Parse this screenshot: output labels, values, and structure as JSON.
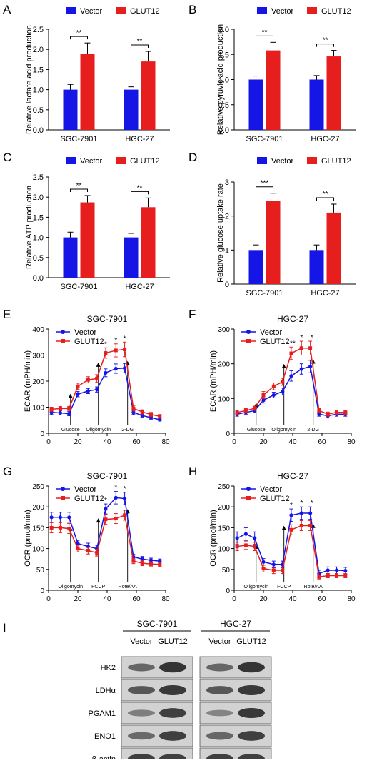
{
  "colors": {
    "vector": "#1515e6",
    "glut12": "#e61e1e",
    "blot_bg": "#d2d2d2",
    "band": "#2d2d2d"
  },
  "legend": {
    "vector": "Vector",
    "glut12": "GLUT12"
  },
  "chart_data": [
    {
      "panel": "A",
      "type": "bar",
      "categories": [
        "SGC-7901",
        "HGC-27"
      ],
      "series": [
        {
          "name": "Vector",
          "values": [
            1.0,
            1.0
          ],
          "errors": [
            0.13,
            0.07
          ]
        },
        {
          "name": "GLUT12",
          "values": [
            1.88,
            1.7
          ],
          "errors": [
            0.28,
            0.25
          ]
        }
      ],
      "significance": [
        "**",
        "**"
      ],
      "ylabel": "Relative lactate acid production",
      "ylim": [
        0,
        2.5
      ],
      "yticks": [
        "0.0",
        "0.5",
        "1.0",
        "1.5",
        "2.0",
        "2.5"
      ],
      "grid": false,
      "legend": "top"
    },
    {
      "panel": "B",
      "type": "bar",
      "categories": [
        "SGC-7901",
        "HGC-27"
      ],
      "series": [
        {
          "name": "Vector",
          "values": [
            1.0,
            1.0
          ],
          "errors": [
            0.07,
            0.08
          ]
        },
        {
          "name": "GLUT12",
          "values": [
            1.58,
            1.46
          ],
          "errors": [
            0.16,
            0.12
          ]
        }
      ],
      "significance": [
        "**",
        "**"
      ],
      "ylabel": "Relative pyruvic acid production",
      "ylim": [
        0,
        2.0
      ],
      "yticks": [
        "0.0",
        "0.5",
        "1.0",
        "1.5",
        "2.0"
      ],
      "grid": false,
      "legend": "top"
    },
    {
      "panel": "C",
      "type": "bar",
      "categories": [
        "SGC-7901",
        "HGC-27"
      ],
      "series": [
        {
          "name": "Vector",
          "values": [
            1.0,
            1.0
          ],
          "errors": [
            0.13,
            0.1
          ]
        },
        {
          "name": "GLUT12",
          "values": [
            1.87,
            1.75
          ],
          "errors": [
            0.17,
            0.23
          ]
        }
      ],
      "significance": [
        "**",
        "**"
      ],
      "ylabel": "Relative ATP production",
      "ylim": [
        0,
        2.5
      ],
      "yticks": [
        "0.0",
        "0.5",
        "1.0",
        "1.5",
        "2.0",
        "2.5"
      ],
      "grid": false,
      "legend": "top"
    },
    {
      "panel": "D",
      "type": "bar",
      "categories": [
        "SGC-7901",
        "HGC-27"
      ],
      "series": [
        {
          "name": "Vector",
          "values": [
            1.0,
            1.0
          ],
          "errors": [
            0.15,
            0.15
          ]
        },
        {
          "name": "GLUT12",
          "values": [
            2.45,
            2.1
          ],
          "errors": [
            0.22,
            0.25
          ]
        }
      ],
      "significance": [
        "***",
        "**"
      ],
      "ylabel": "Relative glucose uptake rate",
      "ylim": [
        0,
        3
      ],
      "yticks": [
        "0",
        "1",
        "2",
        "3"
      ],
      "grid": false,
      "legend": "top"
    },
    {
      "panel": "E",
      "type": "line",
      "title": "SGC-7901",
      "ylabel": "ECAR (mPH/min)",
      "xlim": [
        0,
        80
      ],
      "ylim": [
        0,
        400
      ],
      "xticks": [
        "0",
        "20",
        "40",
        "60",
        "80"
      ],
      "yticks": [
        "0",
        "100",
        "200",
        "300",
        "400"
      ],
      "x": [
        2,
        8,
        14,
        20,
        27,
        33,
        39,
        46,
        52,
        58,
        64,
        70,
        76
      ],
      "series": [
        {
          "name": "Vector",
          "values": [
            80,
            78,
            75,
            150,
            162,
            168,
            232,
            248,
            250,
            80,
            68,
            60,
            52
          ],
          "errors": [
            8,
            8,
            8,
            10,
            10,
            10,
            15,
            18,
            18,
            8,
            6,
            6,
            5
          ]
        },
        {
          "name": "GLUT12",
          "values": [
            92,
            95,
            95,
            180,
            205,
            210,
            308,
            318,
            322,
            95,
            82,
            72,
            65
          ],
          "errors": [
            8,
            8,
            8,
            12,
            12,
            15,
            20,
            25,
            28,
            10,
            8,
            8,
            7
          ]
        }
      ],
      "significance": [
        {
          "x": 39,
          "text": "*"
        },
        {
          "x": 46,
          "text": "*"
        },
        {
          "x": 52,
          "text": "*"
        }
      ],
      "injections": [
        {
          "x": 15,
          "label": "Glucose"
        },
        {
          "x": 34,
          "label": "Oligomycin"
        },
        {
          "x": 54,
          "label": "2-DG"
        }
      ],
      "legend": "top-left"
    },
    {
      "panel": "F",
      "type": "line",
      "title": "HGC-27",
      "ylabel": "ECAR (mPH/min)",
      "xlim": [
        0,
        80
      ],
      "ylim": [
        0,
        300
      ],
      "xticks": [
        "0",
        "20",
        "40",
        "60",
        "80"
      ],
      "yticks": [
        "0",
        "100",
        "200",
        "300"
      ],
      "x": [
        2,
        8,
        14,
        20,
        27,
        33,
        39,
        46,
        52,
        58,
        64,
        70,
        76
      ],
      "series": [
        {
          "name": "Vector",
          "values": [
            55,
            60,
            65,
            95,
            110,
            120,
            165,
            185,
            192,
            55,
            50,
            55,
            55
          ],
          "errors": [
            6,
            6,
            6,
            8,
            8,
            10,
            15,
            15,
            18,
            6,
            6,
            6,
            6
          ]
        },
        {
          "name": "GLUT12",
          "values": [
            60,
            65,
            72,
            110,
            135,
            148,
            230,
            245,
            245,
            65,
            55,
            60,
            60
          ],
          "errors": [
            6,
            6,
            6,
            10,
            10,
            10,
            18,
            20,
            20,
            6,
            6,
            6,
            6
          ]
        }
      ],
      "significance": [
        {
          "x": 40,
          "text": "**"
        },
        {
          "x": 46,
          "text": "*"
        },
        {
          "x": 53,
          "text": "*"
        }
      ],
      "injections": [
        {
          "x": 15,
          "label": "Glucose"
        },
        {
          "x": 34,
          "label": "Oligomycin"
        },
        {
          "x": 54,
          "label": "2-DG"
        }
      ],
      "legend": "top-left"
    },
    {
      "panel": "G",
      "type": "line",
      "title": "SGC-7901",
      "ylabel": "OCR (pmol/min)",
      "xlim": [
        0,
        80
      ],
      "ylim": [
        0,
        250
      ],
      "xticks": [
        "0",
        "20",
        "40",
        "60",
        "80"
      ],
      "yticks": [
        "0",
        "50",
        "100",
        "150",
        "200",
        "250"
      ],
      "x": [
        2,
        8,
        14,
        20,
        27,
        33,
        39,
        46,
        52,
        58,
        64,
        70,
        76
      ],
      "series": [
        {
          "name": "Vector",
          "values": [
            175,
            175,
            175,
            112,
            105,
            100,
            195,
            222,
            220,
            80,
            75,
            72,
            70
          ],
          "errors": [
            12,
            12,
            12,
            8,
            8,
            8,
            12,
            15,
            15,
            6,
            6,
            5,
            5
          ]
        },
        {
          "name": "GLUT12",
          "values": [
            150,
            150,
            148,
            100,
            95,
            90,
            170,
            172,
            180,
            70,
            65,
            63,
            62
          ],
          "errors": [
            12,
            12,
            12,
            8,
            8,
            8,
            12,
            12,
            12,
            6,
            6,
            5,
            5
          ]
        }
      ],
      "significance": [
        {
          "x": 39,
          "text": "*"
        },
        {
          "x": 46,
          "text": "*"
        },
        {
          "x": 52,
          "text": "*"
        }
      ],
      "injections": [
        {
          "x": 15,
          "label": "Oligomycin"
        },
        {
          "x": 34,
          "label": "FCCP"
        },
        {
          "x": 54,
          "label": "Rote/AA"
        }
      ],
      "legend": "top-left"
    },
    {
      "panel": "H",
      "type": "line",
      "title": "HGC-27",
      "ylabel": "OCR (pmol/min)",
      "xlim": [
        0,
        80
      ],
      "ylim": [
        0,
        250
      ],
      "xticks": [
        "0",
        "20",
        "40",
        "60",
        "80"
      ],
      "yticks": [
        "0",
        "50",
        "100",
        "150",
        "200",
        "250"
      ],
      "x": [
        2,
        8,
        14,
        20,
        27,
        33,
        39,
        46,
        52,
        58,
        64,
        70,
        76
      ],
      "series": [
        {
          "name": "Vector",
          "values": [
            125,
            135,
            125,
            68,
            62,
            62,
            180,
            185,
            185,
            40,
            48,
            48,
            47
          ],
          "errors": [
            15,
            15,
            15,
            8,
            8,
            8,
            15,
            15,
            15,
            8,
            8,
            8,
            8
          ]
        },
        {
          "name": "GLUT12",
          "values": [
            105,
            108,
            105,
            52,
            48,
            48,
            145,
            155,
            155,
            32,
            35,
            35,
            35
          ],
          "errors": [
            10,
            10,
            10,
            8,
            8,
            8,
            12,
            12,
            12,
            5,
            5,
            5,
            5
          ]
        }
      ],
      "significance": [
        {
          "x": 39,
          "text": "*"
        },
        {
          "x": 46,
          "text": "*"
        },
        {
          "x": 53,
          "text": "*"
        }
      ],
      "injections": [
        {
          "x": 15,
          "label": "Oligomycin"
        },
        {
          "x": 34,
          "label": "FCCP"
        },
        {
          "x": 54,
          "label": "Rote/AA"
        }
      ],
      "legend": "top-left"
    }
  ],
  "western_blot": {
    "panel": "I",
    "groups": [
      "SGC-7901",
      "HGC-27"
    ],
    "lanes": [
      "Vector",
      "GLUT12",
      "Vector",
      "GLUT12"
    ],
    "proteins": [
      "HK2",
      "LDHα",
      "PGAM1",
      "ENO1",
      "β-actin"
    ],
    "band_intensity": [
      [
        0.55,
        0.95,
        0.55,
        0.95
      ],
      [
        0.65,
        0.9,
        0.65,
        0.9
      ],
      [
        0.35,
        0.85,
        0.3,
        0.9
      ],
      [
        0.5,
        0.85,
        0.55,
        0.85
      ],
      [
        0.85,
        0.85,
        0.85,
        0.85
      ]
    ]
  }
}
